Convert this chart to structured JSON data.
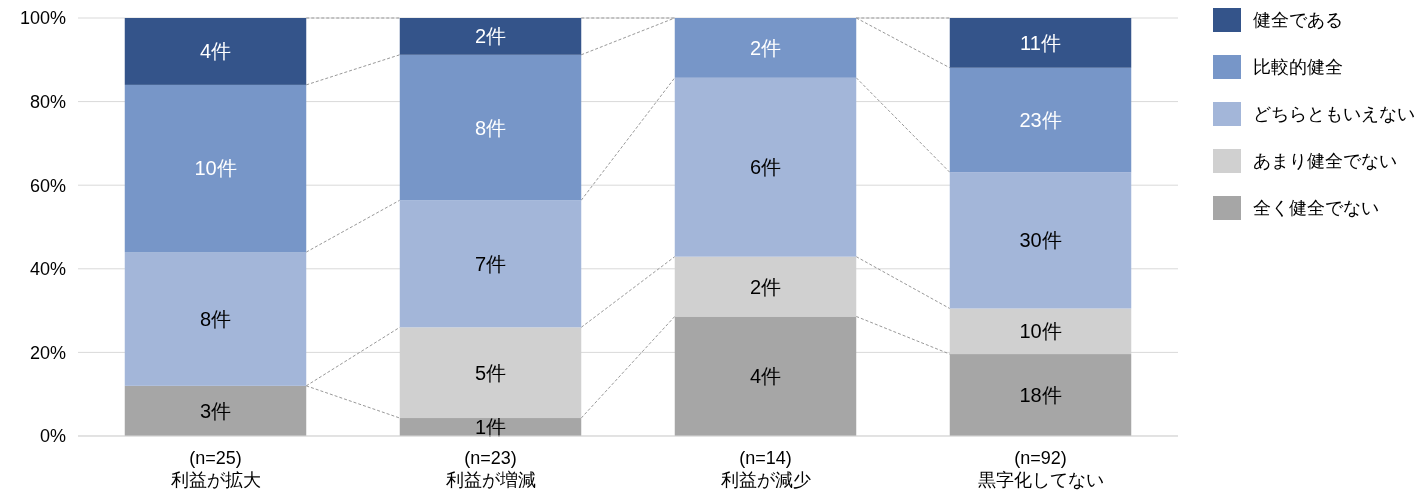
{
  "chart_data": {
    "type": "bar",
    "stacked": true,
    "categories": [
      "(n=25)\n利益が拡大",
      "(n=23)\n利益が増減",
      "(n=14)\n利益が減少",
      "(n=92)\n黒字化してない"
    ],
    "series": [
      {
        "name": "全く健全でない",
        "color": "#a6a6a6",
        "values": [
          12.0,
          4.3,
          28.6,
          19.6
        ]
      },
      {
        "name": "あまり健全でない",
        "color": "#d0d0d0",
        "values": [
          0,
          21.7,
          14.3,
          10.9
        ]
      },
      {
        "name": "どちらともいえない",
        "color": "#a3b6d9",
        "values": [
          32.0,
          30.4,
          42.8,
          32.6
        ]
      },
      {
        "name": "比較的健全",
        "color": "#7796c8",
        "values": [
          40.0,
          34.8,
          14.3,
          25.0
        ]
      },
      {
        "name": "健全である",
        "color": "#34548a",
        "values": [
          16.0,
          8.8,
          0,
          11.9
        ]
      }
    ],
    "annotations": [
      "3件",
      "8件",
      "10件",
      "4件",
      "1件",
      "5件",
      "7件",
      "8件",
      "2件",
      "4件",
      "2件",
      "6件",
      "2件",
      "18件",
      "10件",
      "30件",
      "23件",
      "11件"
    ],
    "ylim": [
      0,
      100
    ],
    "yticks": [
      {
        "value": 0,
        "label": "0%"
      },
      {
        "value": 20,
        "label": "20%"
      },
      {
        "value": 40,
        "label": "40%"
      },
      {
        "value": 60,
        "label": "60%"
      },
      {
        "value": 80,
        "label": "80%"
      },
      {
        "value": 100,
        "label": "100%"
      }
    ],
    "grid": "y",
    "legend": "top right"
  }
}
